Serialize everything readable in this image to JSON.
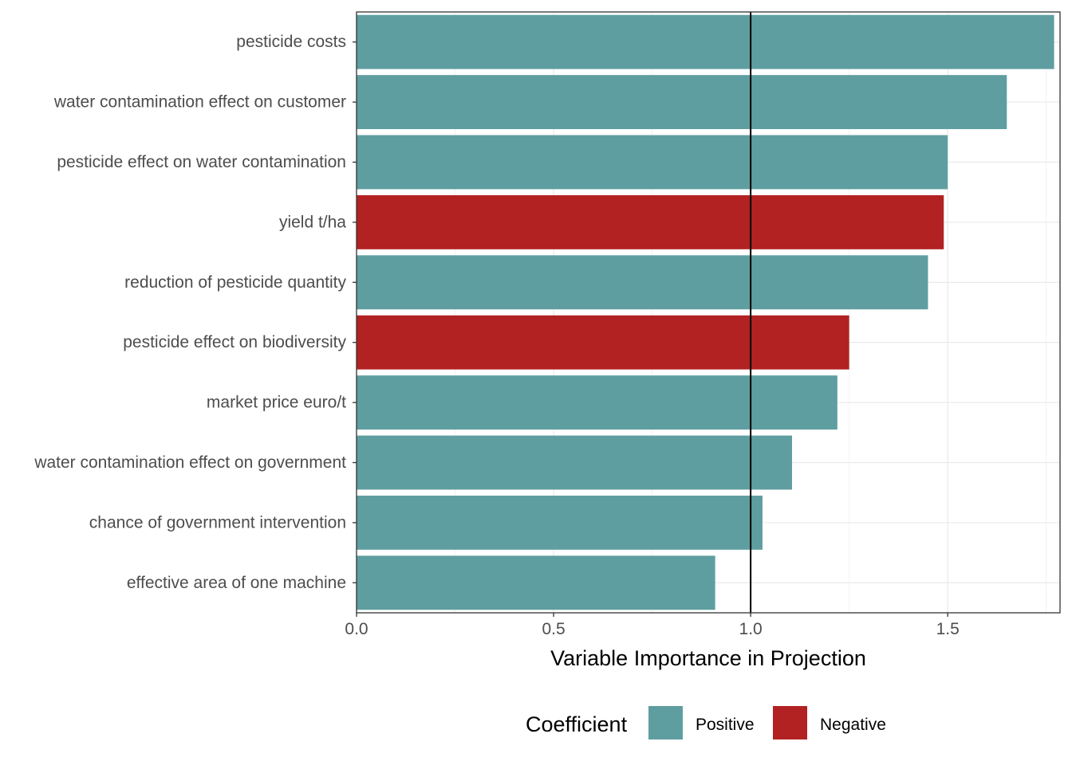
{
  "chart_data": {
    "type": "bar",
    "orientation": "horizontal",
    "categories": [
      "pesticide costs",
      "water contamination effect on customer",
      "pesticide effect on water contamination",
      "yield t/ha",
      "reduction of pesticide quantity",
      "pesticide effect on biodiversity",
      "market price euro/t",
      "water contamination effect on government",
      "chance of government intervention",
      "effective area of one machine"
    ],
    "values": [
      1.77,
      1.65,
      1.5,
      1.49,
      1.45,
      1.25,
      1.22,
      1.105,
      1.03,
      0.91
    ],
    "coefficient": [
      "Positive",
      "Positive",
      "Positive",
      "Negative",
      "Positive",
      "Negative",
      "Positive",
      "Positive",
      "Positive",
      "Positive"
    ],
    "xlabel": "Variable Importance in Projection",
    "ylabel": "",
    "xlim": [
      0,
      1.785
    ],
    "xticks": [
      0,
      0.5,
      1,
      1.5
    ],
    "xtick_labels": [
      "0.0",
      "0.5",
      "1.0",
      "1.5"
    ],
    "reference_line": 1.0,
    "grid": true,
    "legend": {
      "title": "Coefficient",
      "position": "bottom",
      "entries": [
        {
          "label": "Positive",
          "color": "#5f9ea0"
        },
        {
          "label": "Negative",
          "color": "#b22222"
        }
      ]
    },
    "colors": {
      "Positive": "#5f9ea0",
      "Negative": "#b22222"
    }
  }
}
